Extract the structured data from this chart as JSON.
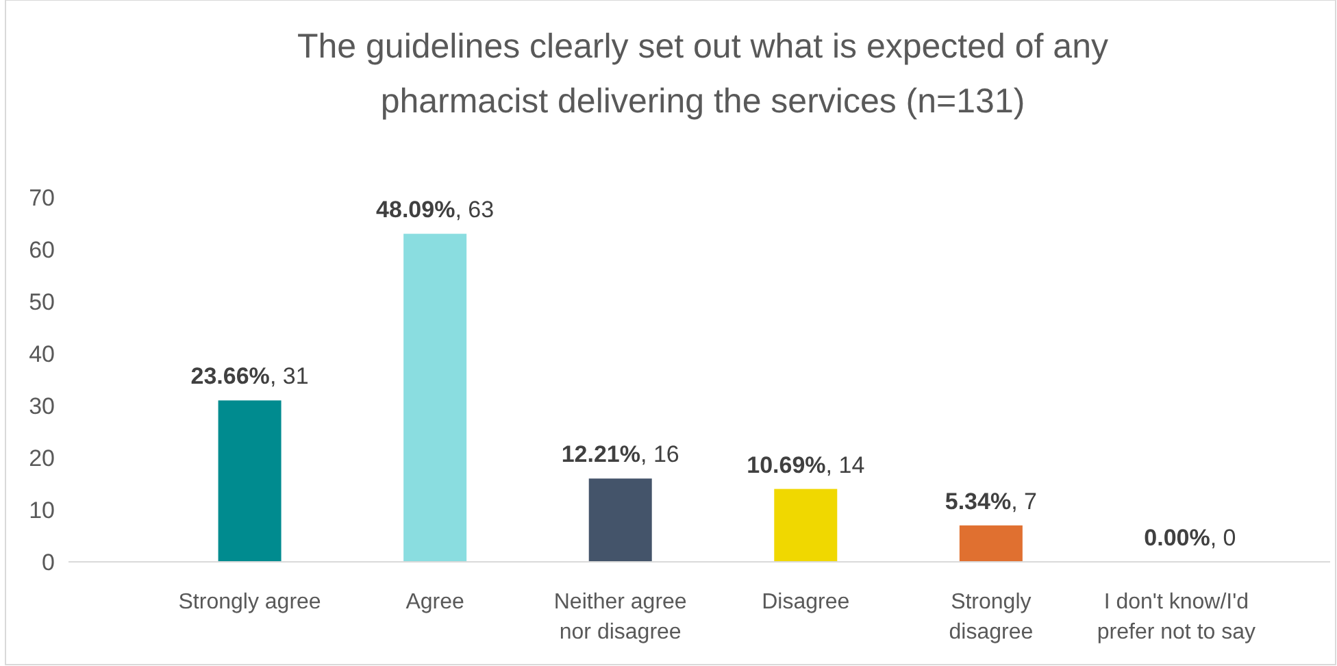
{
  "chart_data": {
    "type": "bar",
    "title": "The guidelines clearly set out what is expected of any pharmacist delivering the services (n=131)",
    "categories": [
      "Strongly agree",
      "Agree",
      "Neither agree nor disagree",
      "Disagree",
      "Strongly disagree",
      "I don't know/I'd prefer not to say"
    ],
    "values": [
      31,
      63,
      16,
      14,
      7,
      0
    ],
    "colors": [
      "#008b8f",
      "#8adde0",
      "#44546a",
      "#f0d800",
      "#e07030",
      "#7f7f7f"
    ],
    "value_labels": [
      "23.66%, 31",
      "48.09%, 63",
      "12.21%, 16",
      "10.69%, 14",
      "5.34%, 7",
      "0.00%, 0"
    ],
    "ylim": [
      0,
      70
    ],
    "yticks": [
      0,
      10,
      20,
      30,
      40,
      50,
      60,
      70
    ]
  }
}
